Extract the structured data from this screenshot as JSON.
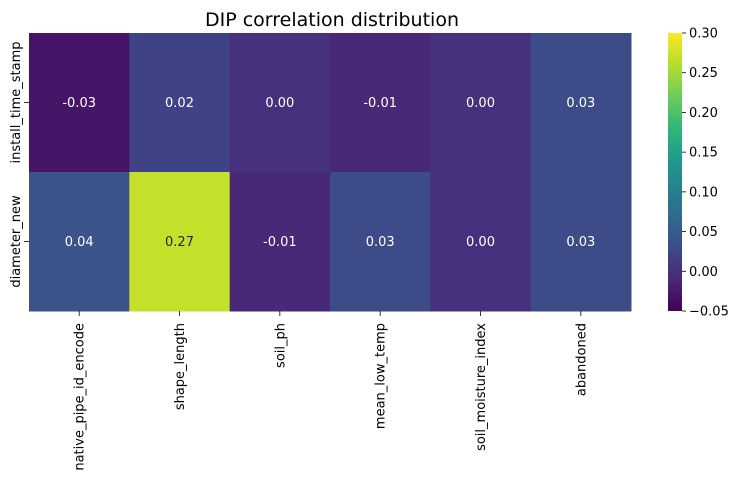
{
  "chart_data": {
    "type": "heatmap",
    "title": "DIP correlation distribution",
    "xlabel": "",
    "ylabel": "",
    "row_labels": [
      "install_time_stamp",
      "diameter_new"
    ],
    "col_labels": [
      "native_pipe_id_encode",
      "shape_length",
      "soil_ph",
      "mean_low_temp",
      "soil_moisture_index",
      "abandoned"
    ],
    "values": [
      [
        -0.03,
        0.02,
        0.0,
        -0.01,
        0.0,
        0.03
      ],
      [
        0.04,
        0.27,
        -0.01,
        0.03,
        0.0,
        0.03
      ]
    ],
    "value_labels": [
      [
        "-0.03",
        "0.02",
        "0.00",
        "-0.01",
        "0.00",
        "0.03"
      ],
      [
        "0.04",
        "0.27",
        "-0.01",
        "0.03",
        "0.00",
        "0.03"
      ]
    ],
    "colorbar": {
      "vmin": -0.05,
      "vmax": 0.3,
      "ticks": [
        -0.05,
        0.0,
        0.05,
        0.1,
        0.15,
        0.2,
        0.25,
        0.3
      ],
      "tick_labels": [
        "−0.05",
        "0.00",
        "0.05",
        "0.10",
        "0.15",
        "0.20",
        "0.25",
        "0.30"
      ]
    },
    "colormap": "viridis",
    "colormap_stops": [
      "#440154",
      "#482878",
      "#3e4989",
      "#31688e",
      "#26828e",
      "#1f9e89",
      "#35b779",
      "#6ece58",
      "#b5de2b",
      "#fde725"
    ],
    "annotation_colors": {
      "light": "#ffffff",
      "dark": "#262626"
    },
    "grid": false
  }
}
